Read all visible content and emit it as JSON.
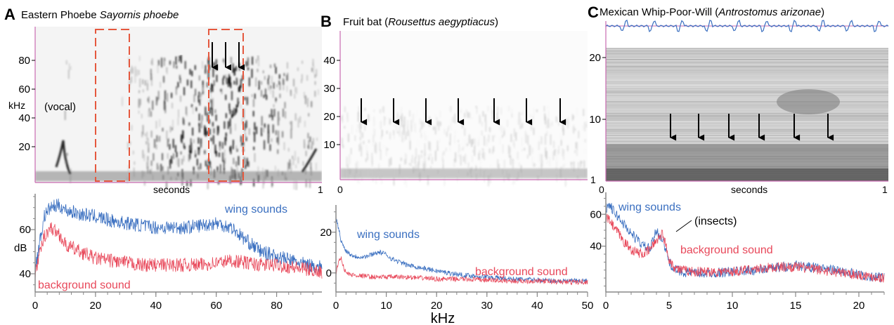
{
  "figure": {
    "x_axis_label": "kHz",
    "colors": {
      "wing": "#3a6fc0",
      "background": "#e8485a",
      "dashed_box": "#e5583e",
      "axis": "#c86ab0",
      "arrow": "#000000"
    }
  },
  "panels": [
    {
      "letter": "A",
      "title_plain": "Eastern Phoebe ",
      "title_italic": "Sayornis phoebe",
      "title_after": "",
      "spectrogram": {
        "y_label": "kHz",
        "x_label": "seconds",
        "x_ticks": [
          "1"
        ],
        "y_ticks": [
          "20",
          "40",
          "60",
          "80"
        ],
        "annotation": "(vocal)",
        "arrow_count": 3
      }
    },
    {
      "letter": "B",
      "title_plain": "Fruit bat (",
      "title_italic": "Rousettus aegyptiacus",
      "title_after": ")",
      "spectrogram": {
        "y_label": "",
        "x_label": "",
        "x_ticks": [
          "0",
          "1"
        ],
        "y_ticks": [
          "10",
          "20",
          "30",
          "40"
        ],
        "annotation": "",
        "arrow_count": 7
      }
    },
    {
      "letter": "C",
      "title_plain": "Mexican Whip-Poor-Will (",
      "title_italic": "Antrostomus arizonae",
      "title_after": ")",
      "spectrogram": {
        "y_label": "",
        "x_label": "seconds",
        "x_ticks": [
          "0",
          "1"
        ],
        "y_ticks": [
          "10",
          "20"
        ],
        "annotation": "",
        "arrow_count": 6
      }
    }
  ],
  "chart_data": [
    {
      "type": "line",
      "panel": "A",
      "xlabel": "",
      "ylabel": "dB",
      "xlim": [
        0,
        95
      ],
      "ylim": [
        33,
        75
      ],
      "x_ticks": [
        0,
        20,
        40,
        60,
        80
      ],
      "y_ticks": [
        40,
        60
      ],
      "x": [
        0,
        3,
        5,
        8,
        10,
        15,
        20,
        25,
        30,
        35,
        40,
        45,
        50,
        55,
        60,
        65,
        70,
        75,
        80,
        85,
        90,
        95
      ],
      "series": [
        {
          "name": "wing sounds",
          "values": [
            42,
            66,
            70,
            71,
            69,
            67,
            66,
            64,
            63,
            62,
            61,
            61,
            61,
            62,
            63,
            61,
            55,
            50,
            48,
            46,
            44,
            43
          ]
        },
        {
          "name": "background sound",
          "values": [
            40,
            57,
            61,
            58,
            53,
            50,
            47,
            46,
            45,
            44,
            44,
            44,
            44,
            44,
            45,
            46,
            45,
            44,
            44,
            43,
            42,
            41
          ]
        }
      ],
      "annotations": [
        "wing sounds",
        "background sound"
      ]
    },
    {
      "type": "line",
      "panel": "B",
      "xlabel": "",
      "ylabel": "",
      "xlim": [
        0,
        50
      ],
      "ylim": [
        -8,
        32
      ],
      "x_ticks": [
        0,
        10,
        20,
        30,
        40,
        50
      ],
      "y_ticks": [
        0,
        20
      ],
      "x": [
        0,
        0.5,
        1,
        1.5,
        2,
        3,
        4,
        5,
        6,
        7,
        8,
        9,
        10,
        11,
        12,
        14,
        16,
        18,
        20,
        25,
        30,
        35,
        40,
        45,
        50
      ],
      "series": [
        {
          "name": "wing sounds",
          "values": [
            27,
            22,
            16,
            13,
            11,
            9,
            8,
            8,
            8,
            9,
            10,
            10,
            9,
            7,
            6,
            4,
            3,
            2,
            1,
            -1,
            -2,
            -3,
            -3.5,
            -4,
            -4
          ]
        },
        {
          "name": "background sound",
          "values": [
            0,
            5,
            8,
            3,
            0,
            -1,
            -1,
            -1.5,
            -1.5,
            -2,
            -2,
            -2,
            -2,
            -2,
            -2,
            -2,
            -2.5,
            -2.5,
            -3,
            -3,
            -3.5,
            -4,
            -4,
            -4.5,
            -4.5
          ]
        }
      ],
      "annotations": [
        "wing sounds",
        "background sound"
      ]
    },
    {
      "type": "line",
      "panel": "C",
      "xlabel": "",
      "ylabel": "",
      "xlim": [
        0,
        22
      ],
      "ylim": [
        13,
        72
      ],
      "x_ticks": [
        0,
        5,
        10,
        15,
        20
      ],
      "y_ticks": [
        40,
        60
      ],
      "x": [
        0,
        0.3,
        0.6,
        1,
        1.5,
        2,
        2.5,
        3,
        3.5,
        4,
        4.5,
        5,
        5.5,
        6,
        7,
        8,
        10,
        12,
        14,
        15,
        16,
        17,
        18,
        20,
        22
      ],
      "series": [
        {
          "name": "wing sounds",
          "values": [
            64,
            66,
            62,
            58,
            53,
            48,
            44,
            40,
            38,
            50,
            44,
            30,
            25,
            24,
            23,
            23,
            24,
            25,
            27,
            28,
            27,
            26,
            25,
            22,
            20
          ]
        },
        {
          "name": "background sound",
          "values": [
            58,
            56,
            52,
            48,
            42,
            38,
            36,
            35,
            38,
            44,
            48,
            32,
            26,
            25,
            24,
            24,
            24,
            26,
            27,
            27,
            26,
            25,
            24,
            22,
            20
          ]
        }
      ],
      "annotations": [
        "wing sounds",
        "background sound",
        "(insects)"
      ]
    }
  ]
}
